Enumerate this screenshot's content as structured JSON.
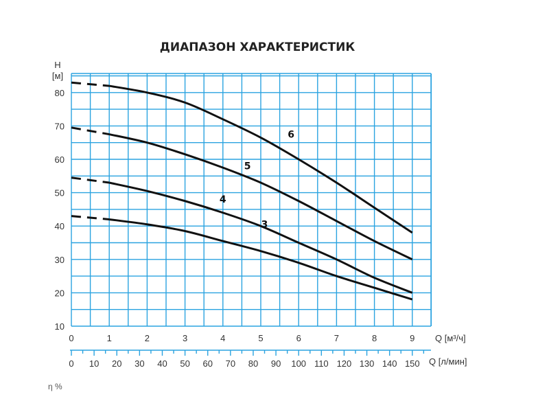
{
  "chart_data": {
    "type": "line",
    "title": "ДИАПАЗОН ХАРАКТЕРИСТИК",
    "ylabel_symbol": "H",
    "ylabel_unit": "[м]",
    "xlabel": "Q [м³/ч]",
    "xlabel2": "Q [л/мин]",
    "xlim": [
      0,
      9.5
    ],
    "ylim": [
      10,
      88
    ],
    "x_ticks": [
      "0",
      "1",
      "2",
      "3",
      "4",
      "5",
      "6",
      "7",
      "8",
      "9"
    ],
    "y_ticks": [
      "10",
      "20",
      "30",
      "40",
      "50",
      "60",
      "70",
      "80"
    ],
    "x2_ticks": [
      "0",
      "10",
      "20",
      "30",
      "40",
      "50",
      "60",
      "70",
      "80",
      "90",
      "100",
      "110",
      "120",
      "130",
      "140",
      "150"
    ],
    "grid": true,
    "grid_color": "#2aa3e0",
    "series": [
      {
        "name": "3",
        "dashed": [
          {
            "x": 0,
            "y": 43
          },
          {
            "x": 1,
            "y": 42
          }
        ],
        "values": [
          {
            "x": 1,
            "y": 42
          },
          {
            "x": 2,
            "y": 40.5
          },
          {
            "x": 3,
            "y": 38.5
          },
          {
            "x": 4,
            "y": 35.5
          },
          {
            "x": 5,
            "y": 32.5
          },
          {
            "x": 6,
            "y": 29
          },
          {
            "x": 7,
            "y": 25
          },
          {
            "x": 8,
            "y": 21.5
          },
          {
            "x": 9,
            "y": 18
          }
        ]
      },
      {
        "name": "4",
        "dashed": [
          {
            "x": 0,
            "y": 54.5
          },
          {
            "x": 1,
            "y": 53
          }
        ],
        "values": [
          {
            "x": 1,
            "y": 53
          },
          {
            "x": 2,
            "y": 50.5
          },
          {
            "x": 3,
            "y": 47.5
          },
          {
            "x": 4,
            "y": 44
          },
          {
            "x": 5,
            "y": 40
          },
          {
            "x": 6,
            "y": 35
          },
          {
            "x": 7,
            "y": 30
          },
          {
            "x": 8,
            "y": 24.5
          },
          {
            "x": 9,
            "y": 20
          }
        ]
      },
      {
        "name": "5",
        "dashed": [
          {
            "x": 0,
            "y": 69.5
          },
          {
            "x": 1,
            "y": 67.5
          }
        ],
        "values": [
          {
            "x": 1,
            "y": 67.5
          },
          {
            "x": 2,
            "y": 65
          },
          {
            "x": 3,
            "y": 61.5
          },
          {
            "x": 4,
            "y": 57.5
          },
          {
            "x": 5,
            "y": 53
          },
          {
            "x": 6,
            "y": 47.5
          },
          {
            "x": 7,
            "y": 41.5
          },
          {
            "x": 8,
            "y": 35.5
          },
          {
            "x": 9,
            "y": 30
          }
        ]
      },
      {
        "name": "6",
        "dashed": [
          {
            "x": 0,
            "y": 83
          },
          {
            "x": 1,
            "y": 82
          }
        ],
        "values": [
          {
            "x": 1,
            "y": 82
          },
          {
            "x": 2,
            "y": 80
          },
          {
            "x": 3,
            "y": 77
          },
          {
            "x": 4,
            "y": 72
          },
          {
            "x": 5,
            "y": 66.5
          },
          {
            "x": 6,
            "y": 60
          },
          {
            "x": 7,
            "y": 53
          },
          {
            "x": 8,
            "y": 45.5
          },
          {
            "x": 9,
            "y": 38
          }
        ]
      }
    ],
    "bottom_partial_text": "η %"
  }
}
